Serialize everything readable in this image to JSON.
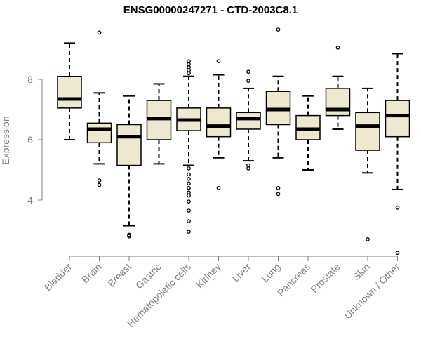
{
  "chart_data": {
    "type": "box",
    "title": "ENSG00000247271 - CTD-2003C8.1",
    "xlabel": "",
    "ylabel": "Expression",
    "ylim": [
      2.0,
      9.8
    ],
    "yticks": [
      4,
      6,
      8
    ],
    "ytick_labels": [
      "4",
      "6",
      "8"
    ],
    "box_fill": "#efe8d0",
    "box_stroke": "#000000",
    "axis_color": "#808080",
    "categories": [
      "Bladder",
      "Brain",
      "Breast",
      "Gastric",
      "Hematopoietic cells",
      "Kidney",
      "Liver",
      "Lung",
      "Pancreas",
      "Prostate",
      "Skin",
      "Unknown / Other"
    ],
    "boxes": [
      {
        "name": "Bladder",
        "whisker_low": 6.0,
        "q1": 7.05,
        "median": 7.35,
        "q3": 8.1,
        "whisker_high": 9.2,
        "outliers": []
      },
      {
        "name": "Brain",
        "whisker_low": 5.2,
        "q1": 5.9,
        "median": 6.35,
        "q3": 6.55,
        "whisker_high": 7.55,
        "outliers": [
          4.5,
          4.65,
          9.55
        ]
      },
      {
        "name": "Breast",
        "whisker_low": 3.15,
        "q1": 5.15,
        "median": 6.1,
        "q3": 6.5,
        "whisker_high": 7.45,
        "outliers": [
          2.8,
          2.85
        ]
      },
      {
        "name": "Gastric",
        "whisker_low": 5.2,
        "q1": 6.0,
        "median": 6.7,
        "q3": 7.3,
        "whisker_high": 7.85,
        "outliers": []
      },
      {
        "name": "Hematopoietic cells",
        "whisker_low": 5.15,
        "q1": 6.3,
        "median": 6.65,
        "q3": 7.05,
        "whisker_high": 8.1,
        "outliers": [
          2.95,
          3.3,
          3.65,
          3.95,
          4.15,
          4.25,
          4.4,
          4.55,
          4.7,
          4.85,
          5.05,
          8.2,
          8.3,
          8.4,
          8.5,
          8.6
        ]
      },
      {
        "name": "Kidney",
        "whisker_low": 5.4,
        "q1": 6.1,
        "median": 6.45,
        "q3": 7.05,
        "whisker_high": 8.15,
        "outliers": [
          4.4,
          8.6
        ]
      },
      {
        "name": "Liver",
        "whisker_low": 5.3,
        "q1": 6.35,
        "median": 6.7,
        "q3": 6.9,
        "whisker_high": 7.7,
        "outliers": [
          5.05,
          5.15,
          7.95,
          8.25
        ]
      },
      {
        "name": "Lung",
        "whisker_low": 5.4,
        "q1": 6.5,
        "median": 7.0,
        "q3": 7.6,
        "whisker_high": 8.1,
        "outliers": [
          4.2,
          4.4,
          9.65
        ]
      },
      {
        "name": "Pancreas",
        "whisker_low": 5.0,
        "q1": 6.0,
        "median": 6.35,
        "q3": 6.8,
        "whisker_high": 7.45,
        "outliers": []
      },
      {
        "name": "Prostate",
        "whisker_low": 6.35,
        "q1": 6.8,
        "median": 7.0,
        "q3": 7.7,
        "whisker_high": 8.1,
        "outliers": [
          9.05
        ]
      },
      {
        "name": "Skin",
        "whisker_low": 4.9,
        "q1": 5.65,
        "median": 6.45,
        "q3": 6.9,
        "whisker_high": 7.7,
        "outliers": [
          2.7
        ]
      },
      {
        "name": "Unknown / Other",
        "whisker_low": 4.35,
        "q1": 6.1,
        "median": 6.8,
        "q3": 7.3,
        "whisker_high": 8.85,
        "outliers": [
          2.25,
          3.75
        ]
      }
    ]
  }
}
